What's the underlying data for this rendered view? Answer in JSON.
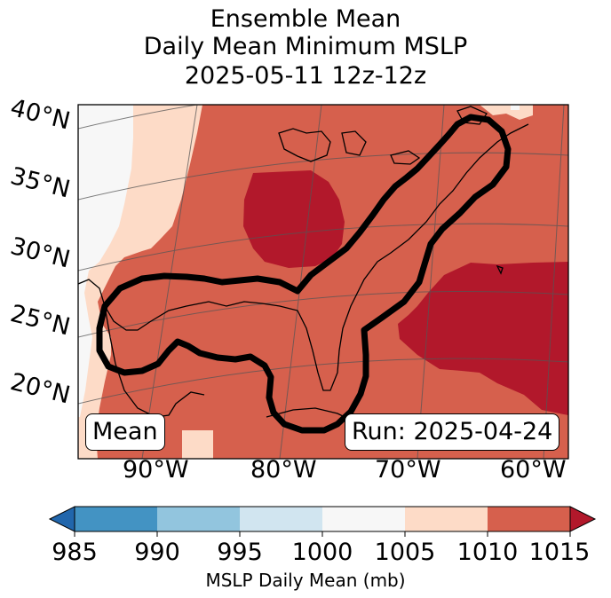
{
  "title": {
    "line1": "Ensemble Mean",
    "line2": "Daily Mean Minimum MSLP",
    "line3": "2025-05-11 12z-12z"
  },
  "map": {
    "lat_labels": [
      "40°N",
      "35°N",
      "30°N",
      "25°N",
      "20°N"
    ],
    "lon_labels": [
      "90°W",
      "80°W",
      "70°W",
      "60°W"
    ],
    "mean_box": "Mean",
    "run_box": "Run: 2025-04-24",
    "contour": "probability outline",
    "colors": {
      "c1000_1005": "#f7f7f7",
      "c1005_1010": "#fddbc7",
      "c1010_1015": "#d6604d",
      "c1015_plus": "#b2182b",
      "land_outline": "#000000",
      "grid": "#555555"
    }
  },
  "colorbar": {
    "ticks": [
      "985",
      "990",
      "995",
      "1000",
      "1005",
      "1010",
      "1015"
    ],
    "label": "MSLP Daily Mean (mb)",
    "colors": [
      "#2166ac",
      "#4393c3",
      "#92c5de",
      "#d1e5f0",
      "#f7f7f7",
      "#fddbc7",
      "#d6604d",
      "#b2182b"
    ]
  }
}
